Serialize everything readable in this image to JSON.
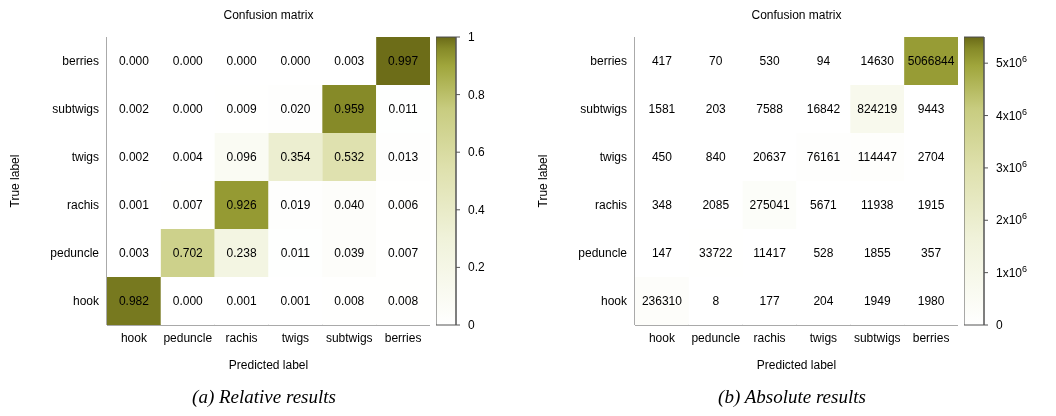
{
  "chart_data": [
    {
      "type": "heatmap",
      "title": "Confusion matrix",
      "xlabel": "Predicted label",
      "ylabel": "True label",
      "categories": [
        "hook",
        "peduncle",
        "rachis",
        "twigs",
        "subtwigs",
        "berries"
      ],
      "y_categories": [
        "berries",
        "subtwigs",
        "twigs",
        "rachis",
        "peduncle",
        "hook"
      ],
      "cells": [
        [
          0,
          0,
          0,
          0,
          0.003,
          0.997
        ],
        [
          0.002,
          0,
          0.009,
          0.02,
          0.959,
          0.011
        ],
        [
          0.002,
          0.004,
          0.096,
          0.354,
          0.532,
          0.013
        ],
        [
          0.001,
          0.007,
          0.926,
          0.019,
          0.04,
          0.006
        ],
        [
          0.003,
          0.702,
          0.238,
          0.011,
          0.039,
          0.007
        ],
        [
          0.982,
          0,
          0.001,
          0.001,
          0.008,
          0.008
        ]
      ],
      "cell_labels": [
        [
          "0.000",
          "0.000",
          "0.000",
          "0.000",
          "0.003",
          "0.997"
        ],
        [
          "0.002",
          "0.000",
          "0.009",
          "0.020",
          "0.959",
          "0.011"
        ],
        [
          "0.002",
          "0.004",
          "0.096",
          "0.354",
          "0.532",
          "0.013"
        ],
        [
          "0.001",
          "0.007",
          "0.926",
          "0.019",
          "0.040",
          "0.006"
        ],
        [
          "0.003",
          "0.702",
          "0.238",
          "0.011",
          "0.039",
          "0.007"
        ],
        [
          "0.982",
          "0.000",
          "0.001",
          "0.001",
          "0.008",
          "0.008"
        ]
      ],
      "clim": [
        0,
        1
      ],
      "cticks": [
        0,
        0.2,
        0.4,
        0.6,
        0.8,
        1
      ],
      "annotations": [
        "(a) Relative results"
      ]
    },
    {
      "type": "heatmap",
      "title": "Confusion matrix",
      "xlabel": "Predicted label",
      "ylabel": "True label",
      "categories": [
        "hook",
        "peduncle",
        "rachis",
        "twigs",
        "subtwigs",
        "berries"
      ],
      "y_categories": [
        "berries",
        "subtwigs",
        "twigs",
        "rachis",
        "peduncle",
        "hook"
      ],
      "cells": [
        [
          417,
          70,
          530,
          94,
          14630,
          5066844
        ],
        [
          1581,
          203,
          7588,
          16842,
          824219,
          9443
        ],
        [
          450,
          840,
          20637,
          76161,
          114447,
          2704
        ],
        [
          348,
          2085,
          275041,
          5671,
          11938,
          1915
        ],
        [
          147,
          33722,
          11417,
          528,
          1855,
          357
        ],
        [
          236310,
          8,
          177,
          204,
          1949,
          1980
        ]
      ],
      "data_labels": true,
      "clim": [
        0,
        5500000
      ],
      "cticks": [
        0,
        {
          "value": 1000000,
          "label": "1x10$^{6}$"
        },
        {
          "value": 2000000,
          "label": "2x10$^{6}$"
        },
        {
          "value": 3000000,
          "label": "3x10$^{6}$"
        },
        {
          "value": 4000000,
          "label": "4x10$^{6}$"
        },
        {
          "value": 5000000,
          "label": "5x10$^{6}$"
        }
      ],
      "annotations": [
        "(b) Absolute results"
      ]
    }
  ]
}
